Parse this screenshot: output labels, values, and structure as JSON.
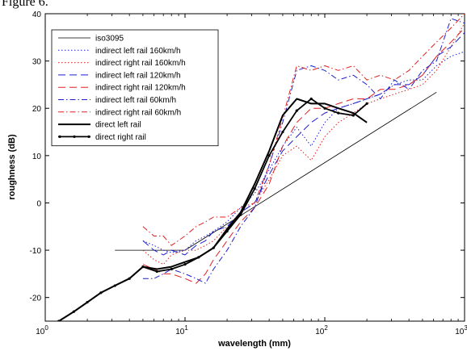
{
  "caption": "Figure 6.",
  "chart_data": {
    "type": "line",
    "title": "",
    "xlabel": "wavelength (mm)",
    "ylabel": "roughness (dB)",
    "xscale": "log",
    "xlim": [
      1,
      1000
    ],
    "ylim": [
      -25,
      40
    ],
    "xticks": [
      1,
      10,
      100,
      1000
    ],
    "xtick_labels": [
      {
        "base": "10",
        "exp": "0"
      },
      {
        "base": "10",
        "exp": "1"
      },
      {
        "base": "10",
        "exp": "2"
      },
      {
        "base": "10",
        "exp": "3"
      }
    ],
    "yticks": [
      -20,
      -10,
      0,
      10,
      20,
      30,
      40
    ],
    "ytick_labels": [
      "-20",
      "-10",
      "0",
      "10",
      "20",
      "30",
      "40"
    ],
    "grid": false,
    "legend_position": "top-left",
    "series": [
      {
        "name": "iso3095",
        "color": "#000000",
        "dash": "solid",
        "width": 0.8,
        "x": [
          3.15,
          10,
          31.5,
          630
        ],
        "y": [
          -10,
          -10,
          -0.8,
          23.4
        ]
      },
      {
        "name": "indirect left rail 160km/h",
        "color": "#1f1fd0",
        "dash": "dot",
        "width": 1,
        "x": [
          5,
          6,
          7,
          8,
          10,
          12,
          14,
          16,
          20,
          25,
          31.5,
          40,
          50,
          63,
          80,
          100,
          125,
          160,
          200,
          250,
          315,
          400,
          500,
          630,
          800,
          1000
        ],
        "y": [
          -8,
          -9,
          -10,
          -10.5,
          -10,
          -8,
          -7,
          -6,
          -4,
          -1,
          2,
          7,
          12,
          16,
          12,
          17,
          20,
          21,
          22,
          23,
          25,
          26,
          26,
          29,
          31,
          32
        ]
      },
      {
        "name": "indirect right rail 160km/h",
        "color": "#e02020",
        "dash": "dot",
        "width": 1,
        "x": [
          5,
          6,
          7,
          8,
          10,
          12,
          14,
          16,
          20,
          25,
          31.5,
          40,
          50,
          63,
          80,
          100,
          125,
          160,
          200,
          250,
          315,
          400,
          500,
          630,
          800,
          1000
        ],
        "y": [
          -10,
          -12,
          -13,
          -11,
          -10,
          -10,
          -9,
          -8,
          -5,
          -2,
          0,
          5,
          10,
          12,
          9,
          14,
          17,
          19,
          21,
          22,
          23,
          24,
          25,
          28,
          33,
          38
        ]
      },
      {
        "name": "indirect left rail 120km/h",
        "color": "#1f1fd0",
        "dash": "longdash",
        "width": 1,
        "x": [
          5,
          6,
          7,
          8,
          10,
          12,
          14,
          16,
          20,
          25,
          31.5,
          40,
          50,
          63,
          80,
          100,
          125,
          160,
          200,
          250,
          315,
          400,
          500,
          630,
          800,
          1000
        ],
        "y": [
          -8,
          -10,
          -11,
          -10,
          -11,
          -9,
          -8,
          -6,
          -5,
          -2,
          0,
          6,
          11,
          14,
          17,
          19,
          20,
          21,
          22,
          23,
          25,
          25,
          27,
          31,
          33,
          36
        ]
      },
      {
        "name": "indirect right rail 120km/h",
        "color": "#e02020",
        "dash": "longdash",
        "width": 1,
        "x": [
          5,
          6,
          7,
          8,
          10,
          12,
          14,
          16,
          20,
          25,
          31.5,
          40,
          50,
          63,
          80,
          100,
          125,
          160,
          200,
          250,
          315,
          400,
          500,
          630,
          800,
          1000
        ],
        "y": [
          -13,
          -14,
          -15,
          -15,
          -16,
          -17,
          -15,
          -12,
          -8,
          -4,
          -1,
          4,
          12,
          17,
          20,
          20,
          21,
          22,
          22,
          24,
          24,
          25,
          27,
          31,
          34,
          37
        ]
      },
      {
        "name": "indirect left rail 60km/h",
        "color": "#1f1fd0",
        "dash": "dashdot",
        "width": 1,
        "x": [
          5,
          6,
          7,
          8,
          10,
          12,
          14,
          16,
          20,
          25,
          31.5,
          40,
          50,
          63,
          80,
          100,
          125,
          160,
          200,
          250,
          315,
          400,
          500,
          630,
          800,
          1000
        ],
        "y": [
          -16,
          -16,
          -15,
          -14,
          -15,
          -16,
          -17,
          -14,
          -10,
          -5,
          -1,
          8,
          17,
          28,
          29,
          28,
          26,
          27,
          25,
          22,
          26,
          24,
          28,
          30,
          39,
          38
        ]
      },
      {
        "name": "indirect right rail 60km/h",
        "color": "#e02020",
        "dash": "dashdot",
        "width": 1,
        "x": [
          5,
          6,
          7,
          8,
          10,
          12,
          14,
          16,
          20,
          25,
          31.5,
          40,
          50,
          63,
          80,
          100,
          125,
          160,
          200,
          250,
          315,
          400,
          500,
          630,
          800,
          1000
        ],
        "y": [
          -5,
          -7,
          -7,
          -9,
          -7,
          -5,
          -4,
          -3,
          -3,
          -1,
          0,
          8,
          18,
          29,
          28,
          29,
          28,
          29,
          26,
          27,
          26,
          28,
          31,
          34,
          37,
          40
        ]
      },
      {
        "name": "direct left rail",
        "color": "#000000",
        "dash": "solid",
        "width": 2,
        "x": [
          1.25,
          1.6,
          2,
          2.5,
          3.15,
          4,
          5,
          6.3,
          8,
          10,
          12.5,
          16,
          20,
          25,
          31.5,
          40,
          50,
          63,
          80,
          100,
          125,
          160,
          200
        ],
        "y": [
          -25,
          -23,
          -21,
          -19,
          -17.5,
          -16,
          -13.5,
          -14,
          -13.5,
          -12.5,
          -11.5,
          -9.5,
          -5.5,
          -2,
          4,
          11,
          18.5,
          22,
          21,
          21,
          20,
          19,
          17
        ]
      },
      {
        "name": "direct right rail",
        "color": "#000000",
        "dash": "solid",
        "width": 1.8,
        "marker": "dot",
        "x": [
          1.25,
          1.6,
          2,
          2.5,
          3.15,
          4,
          5,
          6.3,
          8,
          10,
          12.5,
          16,
          20,
          25,
          31.5,
          40,
          50,
          63,
          80,
          100,
          125,
          160,
          200
        ],
        "y": [
          -25,
          -23,
          -21,
          -19,
          -17.5,
          -16,
          -13.5,
          -14.5,
          -14,
          -13,
          -11.5,
          -9.5,
          -6,
          -2.5,
          3,
          10,
          15,
          19.5,
          22,
          20,
          19,
          18.5,
          21
        ]
      }
    ]
  }
}
